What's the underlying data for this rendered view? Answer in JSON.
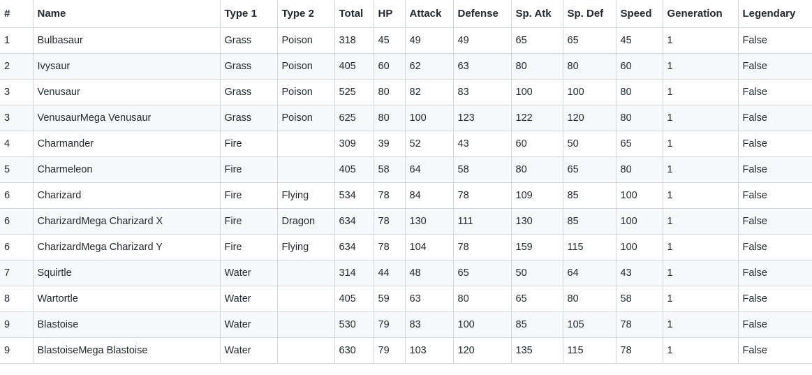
{
  "table": {
    "columns": [
      "#",
      "Name",
      "Type 1",
      "Type 2",
      "Total",
      "HP",
      "Attack",
      "Defense",
      "Sp. Atk",
      "Sp. Def",
      "Speed",
      "Generation",
      "Legendary"
    ],
    "rows": [
      [
        "1",
        "Bulbasaur",
        "Grass",
        "Poison",
        "318",
        "45",
        "49",
        "49",
        "65",
        "65",
        "45",
        "1",
        "False"
      ],
      [
        "2",
        "Ivysaur",
        "Grass",
        "Poison",
        "405",
        "60",
        "62",
        "63",
        "80",
        "80",
        "60",
        "1",
        "False"
      ],
      [
        "3",
        "Venusaur",
        "Grass",
        "Poison",
        "525",
        "80",
        "82",
        "83",
        "100",
        "100",
        "80",
        "1",
        "False"
      ],
      [
        "3",
        "VenusaurMega Venusaur",
        "Grass",
        "Poison",
        "625",
        "80",
        "100",
        "123",
        "122",
        "120",
        "80",
        "1",
        "False"
      ],
      [
        "4",
        "Charmander",
        "Fire",
        "",
        "309",
        "39",
        "52",
        "43",
        "60",
        "50",
        "65",
        "1",
        "False"
      ],
      [
        "5",
        "Charmeleon",
        "Fire",
        "",
        "405",
        "58",
        "64",
        "58",
        "80",
        "65",
        "80",
        "1",
        "False"
      ],
      [
        "6",
        "Charizard",
        "Fire",
        "Flying",
        "534",
        "78",
        "84",
        "78",
        "109",
        "85",
        "100",
        "1",
        "False"
      ],
      [
        "6",
        "CharizardMega Charizard X",
        "Fire",
        "Dragon",
        "634",
        "78",
        "130",
        "111",
        "130",
        "85",
        "100",
        "1",
        "False"
      ],
      [
        "6",
        "CharizardMega Charizard Y",
        "Fire",
        "Flying",
        "634",
        "78",
        "104",
        "78",
        "159",
        "115",
        "100",
        "1",
        "False"
      ],
      [
        "7",
        "Squirtle",
        "Water",
        "",
        "314",
        "44",
        "48",
        "65",
        "50",
        "64",
        "43",
        "1",
        "False"
      ],
      [
        "8",
        "Wartortle",
        "Water",
        "",
        "405",
        "59",
        "63",
        "80",
        "65",
        "80",
        "58",
        "1",
        "False"
      ],
      [
        "9",
        "Blastoise",
        "Water",
        "",
        "530",
        "79",
        "83",
        "100",
        "85",
        "105",
        "78",
        "1",
        "False"
      ],
      [
        "9",
        "BlastoiseMega Blastoise",
        "Water",
        "",
        "630",
        "79",
        "103",
        "120",
        "135",
        "115",
        "78",
        "1",
        "False"
      ]
    ]
  },
  "colors": {
    "border": "#d0d7de",
    "stripe": "#f6f8fa",
    "text": "#24292f"
  }
}
